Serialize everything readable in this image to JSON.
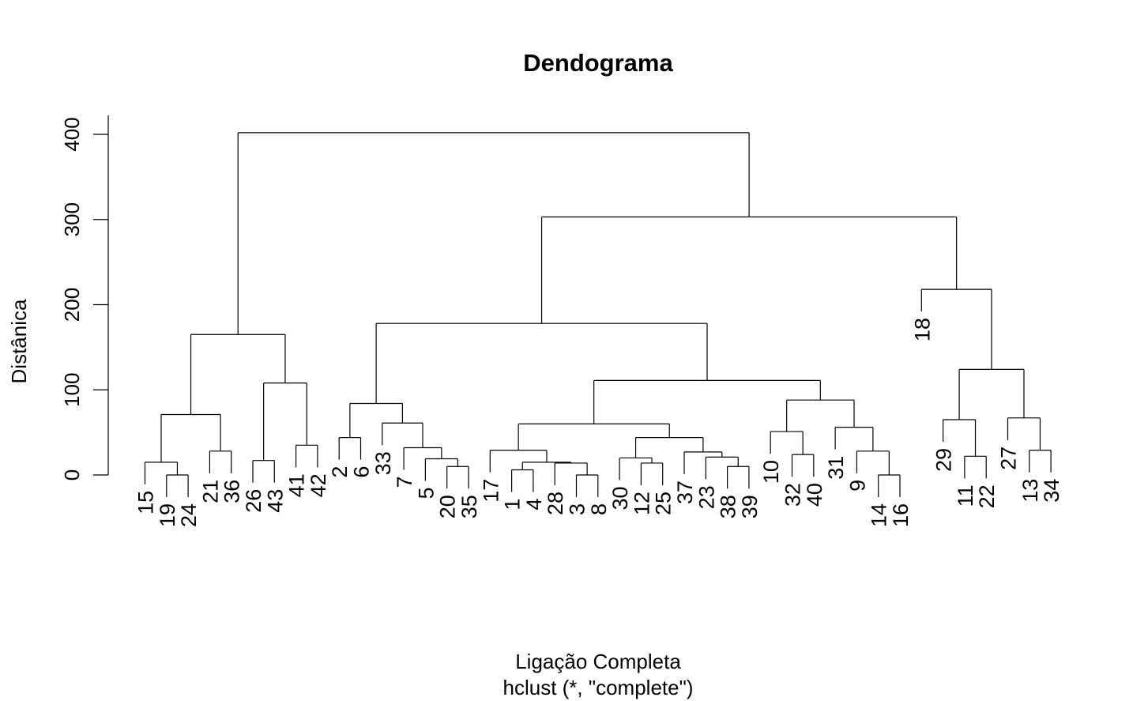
{
  "chart_data": {
    "type": "dendrogram",
    "title": "Dendograma",
    "xlabel": "Ligação Completa",
    "subtitle": "hclust (*, \"complete\")",
    "ylabel": "Distânica",
    "ylim": [
      0,
      400
    ],
    "yticks": [
      0,
      100,
      200,
      300,
      400
    ],
    "leaf_order": [
      "15",
      "19",
      "24",
      "21",
      "36",
      "26",
      "43",
      "41",
      "42",
      "2",
      "6",
      "33",
      "7",
      "5",
      "20",
      "35",
      "17",
      "1",
      "4",
      "28",
      "3",
      "8",
      "30",
      "12",
      "25",
      "37",
      "23",
      "38",
      "39",
      "10",
      "32",
      "40",
      "31",
      "9",
      "14",
      "16",
      "18",
      "29",
      "11",
      "22",
      "27",
      "13",
      "34"
    ],
    "merges": [
      {
        "a": "19",
        "b": "24",
        "height": 0
      },
      {
        "a": "15",
        "b": "19,24",
        "height": 15
      },
      {
        "a": "21",
        "b": "36",
        "height": 28
      },
      {
        "a": "15,19,24",
        "b": "21,36",
        "height": 71
      },
      {
        "a": "26",
        "b": "43",
        "height": 17
      },
      {
        "a": "41",
        "b": "42",
        "height": 35
      },
      {
        "a": "26,43",
        "b": "41,42",
        "height": 108
      },
      {
        "a": "15..36",
        "b": "26..42",
        "height": 165
      },
      {
        "a": "2",
        "b": "6",
        "height": 44
      },
      {
        "a": "20",
        "b": "35",
        "height": 10
      },
      {
        "a": "5",
        "b": "20,35",
        "height": 19
      },
      {
        "a": "7",
        "b": "5,20,35",
        "height": 32
      },
      {
        "a": "33",
        "b": "7..35",
        "height": 61
      },
      {
        "a": "2,6",
        "b": "33..35",
        "height": 84
      },
      {
        "a": "3",
        "b": "8",
        "height": 0
      },
      {
        "a": "28",
        "b": "3,8",
        "height": 14
      },
      {
        "a": "1",
        "b": "4",
        "height": 6
      },
      {
        "a": "1,4",
        "b": "28,3,8",
        "height": 15
      },
      {
        "a": "17",
        "b": "1..8",
        "height": 29
      },
      {
        "a": "12",
        "b": "25",
        "height": 14
      },
      {
        "a": "30",
        "b": "12,25",
        "height": 20
      },
      {
        "a": "38",
        "b": "39",
        "height": 10
      },
      {
        "a": "23",
        "b": "38,39",
        "height": 21
      },
      {
        "a": "37",
        "b": "23,38,39",
        "height": 27
      },
      {
        "a": "30,12,25",
        "b": "37..39",
        "height": 44
      },
      {
        "a": "17..8",
        "b": "30..39",
        "height": 60
      },
      {
        "a": "32",
        "b": "40",
        "height": 24
      },
      {
        "a": "10",
        "b": "32,40",
        "height": 51
      },
      {
        "a": "14",
        "b": "16",
        "height": 0
      },
      {
        "a": "9",
        "b": "14,16",
        "height": 28
      },
      {
        "a": "31",
        "b": "9,14,16",
        "height": 56
      },
      {
        "a": "10,32,40",
        "b": "31..16",
        "height": 88
      },
      {
        "a": "17..39",
        "b": "10..16",
        "height": 111
      },
      {
        "a": "2..35",
        "b": "17..16",
        "height": 178
      },
      {
        "a": "11",
        "b": "22",
        "height": 22
      },
      {
        "a": "29",
        "b": "11,22",
        "height": 65
      },
      {
        "a": "13",
        "b": "34",
        "height": 29
      },
      {
        "a": "27",
        "b": "13,34",
        "height": 67
      },
      {
        "a": "29,11,22",
        "b": "27,13,34",
        "height": 124
      },
      {
        "a": "18",
        "b": "29..34",
        "height": 218
      },
      {
        "a": "2..16",
        "b": "18..34",
        "height": 303
      },
      {
        "a": "15..42",
        "b": "2..34",
        "height": 402
      }
    ]
  }
}
